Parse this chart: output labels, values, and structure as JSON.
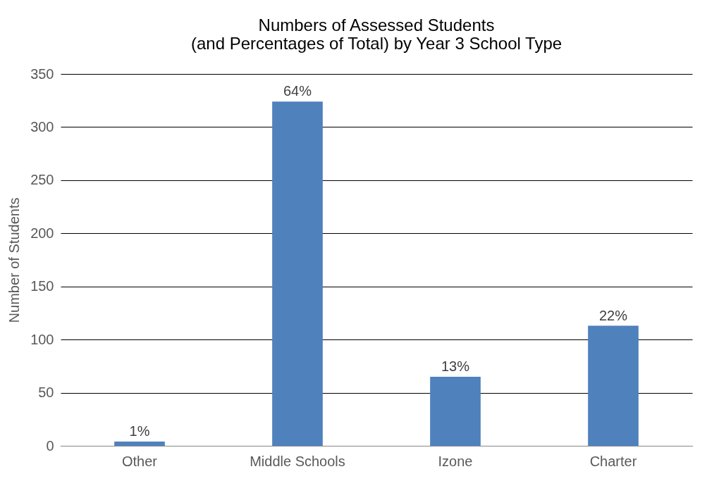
{
  "chart_data": {
    "type": "bar",
    "title": "Numbers of Assessed Students\n(and Percentages of Total) by Year 3 School Type",
    "ylabel": "Number of Students",
    "categories": [
      "Other",
      "Middle Schools",
      "Izone",
      "Charter"
    ],
    "values": [
      4,
      324,
      65,
      113
    ],
    "annotations": [
      {
        "text": "1%",
        "x": "Other",
        "y": 4
      },
      {
        "text": "64%",
        "x": "Middle Schools",
        "y": 324
      },
      {
        "text": "13%",
        "x": "Izone",
        "y": 65
      },
      {
        "text": "22%",
        "x": "Charter",
        "y": 113
      }
    ],
    "color": "#4f81bd",
    "ylim": [
      0,
      350
    ],
    "yticks": [
      0,
      50,
      100,
      150,
      200,
      250,
      300,
      350
    ],
    "grid": "y"
  }
}
